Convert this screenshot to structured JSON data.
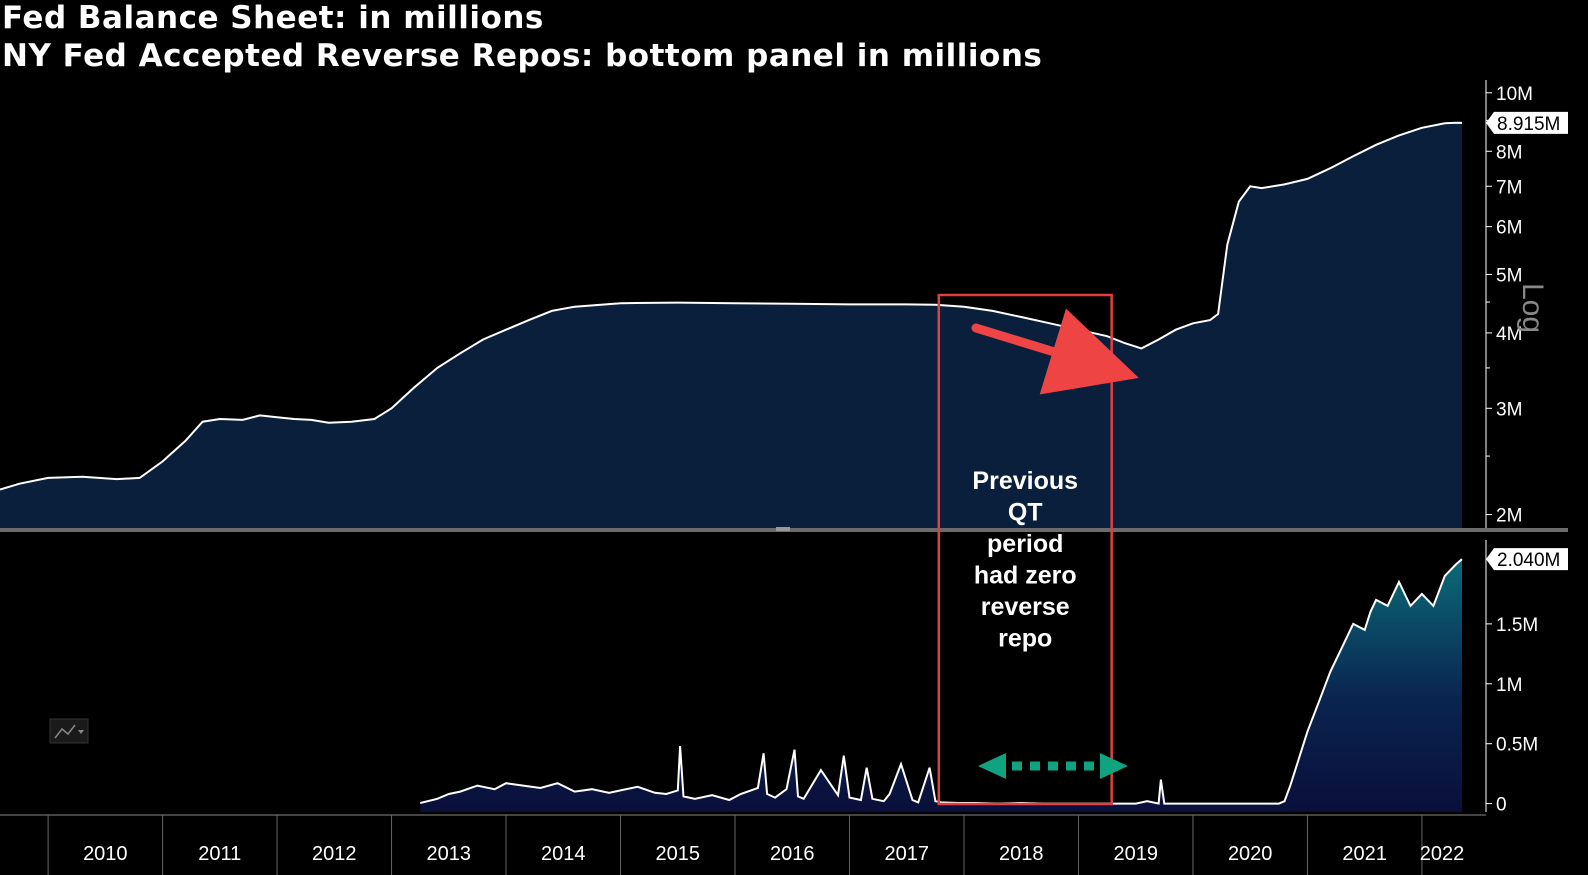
{
  "title_line1": "Fed Balance Sheet: in millions",
  "title_line2": "NY Fed Accepted Reverse Repos: bottom panel in millions",
  "chart_data": [
    {
      "type": "area",
      "panel": "top",
      "scale": "log",
      "title": "Fed Balance Sheet: in millions",
      "y_ticks": [
        "2M",
        "3M",
        "4M",
        "5M",
        "6M",
        "7M",
        "8M",
        "10M"
      ],
      "y_tick_values": [
        2000000,
        3000000,
        4000000,
        5000000,
        6000000,
        7000000,
        8000000,
        10000000
      ],
      "ylim": [
        1900000,
        10500000
      ],
      "scale_label": "Log",
      "last_value_label": "8.915M",
      "series": [
        {
          "name": "Fed Balance Sheet",
          "x": [
            2009.58,
            2009.75,
            2010.0,
            2010.3,
            2010.6,
            2010.8,
            2011.0,
            2011.2,
            2011.35,
            2011.5,
            2011.7,
            2011.85,
            2012.0,
            2012.15,
            2012.3,
            2012.45,
            2012.65,
            2012.85,
            2013.0,
            2013.2,
            2013.4,
            2013.6,
            2013.8,
            2014.0,
            2014.2,
            2014.4,
            2014.6,
            2014.8,
            2015.0,
            2015.5,
            2016.0,
            2016.5,
            2017.0,
            2017.5,
            2017.75,
            2018.0,
            2018.25,
            2018.5,
            2018.75,
            2019.0,
            2019.25,
            2019.4,
            2019.55,
            2019.7,
            2019.85,
            2020.0,
            2020.15,
            2020.22,
            2020.3,
            2020.4,
            2020.5,
            2020.6,
            2020.8,
            2021.0,
            2021.2,
            2021.4,
            2021.6,
            2021.8,
            2022.0,
            2022.2,
            2022.3,
            2022.35
          ],
          "values": [
            2200000,
            2250000,
            2300000,
            2310000,
            2290000,
            2300000,
            2450000,
            2650000,
            2850000,
            2880000,
            2870000,
            2920000,
            2900000,
            2880000,
            2870000,
            2840000,
            2850000,
            2880000,
            3000000,
            3250000,
            3500000,
            3700000,
            3900000,
            4050000,
            4200000,
            4350000,
            4420000,
            4450000,
            4480000,
            4490000,
            4480000,
            4470000,
            4460000,
            4460000,
            4455000,
            4420000,
            4350000,
            4250000,
            4150000,
            4050000,
            3950000,
            3850000,
            3770000,
            3900000,
            4050000,
            4150000,
            4200000,
            4300000,
            5600000,
            6600000,
            7000000,
            6950000,
            7050000,
            7200000,
            7500000,
            7850000,
            8200000,
            8500000,
            8750000,
            8900000,
            8920000,
            8915000
          ]
        }
      ]
    },
    {
      "type": "area",
      "panel": "bottom",
      "title": "NY Fed Accepted Reverse Repos",
      "y_ticks": [
        "0",
        "0.5M",
        "1M",
        "1.5M"
      ],
      "y_tick_values": [
        0,
        500000,
        1000000,
        1500000
      ],
      "ylim": [
        -70000,
        2200000
      ],
      "last_value_label": "2.040M",
      "series": [
        {
          "name": "Reverse Repos",
          "x": [
            2013.25,
            2013.4,
            2013.5,
            2013.6,
            2013.75,
            2013.9,
            2014.0,
            2014.15,
            2014.3,
            2014.45,
            2014.6,
            2014.75,
            2014.9,
            2015.0,
            2015.15,
            2015.3,
            2015.4,
            2015.5,
            2015.52,
            2015.55,
            2015.65,
            2015.8,
            2015.95,
            2016.05,
            2016.2,
            2016.25,
            2016.28,
            2016.35,
            2016.45,
            2016.52,
            2016.55,
            2016.6,
            2016.75,
            2016.9,
            2016.95,
            2017.0,
            2017.1,
            2017.15,
            2017.2,
            2017.3,
            2017.35,
            2017.45,
            2017.55,
            2017.6,
            2017.7,
            2017.75,
            2017.8,
            2017.95,
            2018.1,
            2018.3,
            2018.5,
            2018.7,
            2018.9,
            2019.1,
            2019.3,
            2019.5,
            2019.6,
            2019.7,
            2019.72,
            2019.75,
            2019.8,
            2020.0,
            2020.2,
            2020.4,
            2020.6,
            2020.75,
            2020.8,
            2020.85,
            2020.9,
            2021.0,
            2021.1,
            2021.2,
            2021.3,
            2021.4,
            2021.5,
            2021.55,
            2021.6,
            2021.7,
            2021.8,
            2021.9,
            2022.0,
            2022.1,
            2022.2,
            2022.3,
            2022.35
          ],
          "values": [
            5000,
            40000,
            80000,
            100000,
            150000,
            120000,
            170000,
            150000,
            130000,
            170000,
            100000,
            120000,
            90000,
            110000,
            140000,
            90000,
            80000,
            110000,
            480000,
            60000,
            40000,
            70000,
            30000,
            80000,
            130000,
            420000,
            80000,
            50000,
            120000,
            450000,
            60000,
            40000,
            280000,
            70000,
            400000,
            50000,
            30000,
            300000,
            40000,
            20000,
            80000,
            330000,
            30000,
            10000,
            300000,
            20000,
            10000,
            5000,
            5000,
            0,
            5000,
            0,
            0,
            0,
            0,
            0,
            20000,
            0,
            200000,
            0,
            0,
            0,
            0,
            0,
            0,
            0,
            20000,
            150000,
            300000,
            600000,
            850000,
            1100000,
            1300000,
            1500000,
            1450000,
            1600000,
            1700000,
            1650000,
            1850000,
            1650000,
            1750000,
            1650000,
            1900000,
            2000000,
            2040000
          ]
        }
      ]
    }
  ],
  "x_axis": {
    "labels": [
      "2010",
      "2011",
      "2012",
      "2013",
      "2014",
      "2015",
      "2016",
      "2017",
      "2018",
      "2019",
      "2020",
      "2021",
      "2022"
    ],
    "range": [
      2009.58,
      2022.35
    ]
  },
  "annotation": {
    "lines": [
      "Previous",
      "QT",
      "period",
      "had zero",
      "reverse",
      "repo"
    ],
    "box_x_range": [
      2017.78,
      2019.29
    ],
    "arrow_color": "#ef4444",
    "dotted_arrow_color": "#10a37f"
  },
  "colors": {
    "top_fill": "#0a1f3c",
    "line": "#ffffff",
    "bottom_fill_top": "#0b6b78",
    "bottom_fill_bottom": "#0a0f3a",
    "box": "#e04040",
    "divider": "#6b6b6b"
  }
}
